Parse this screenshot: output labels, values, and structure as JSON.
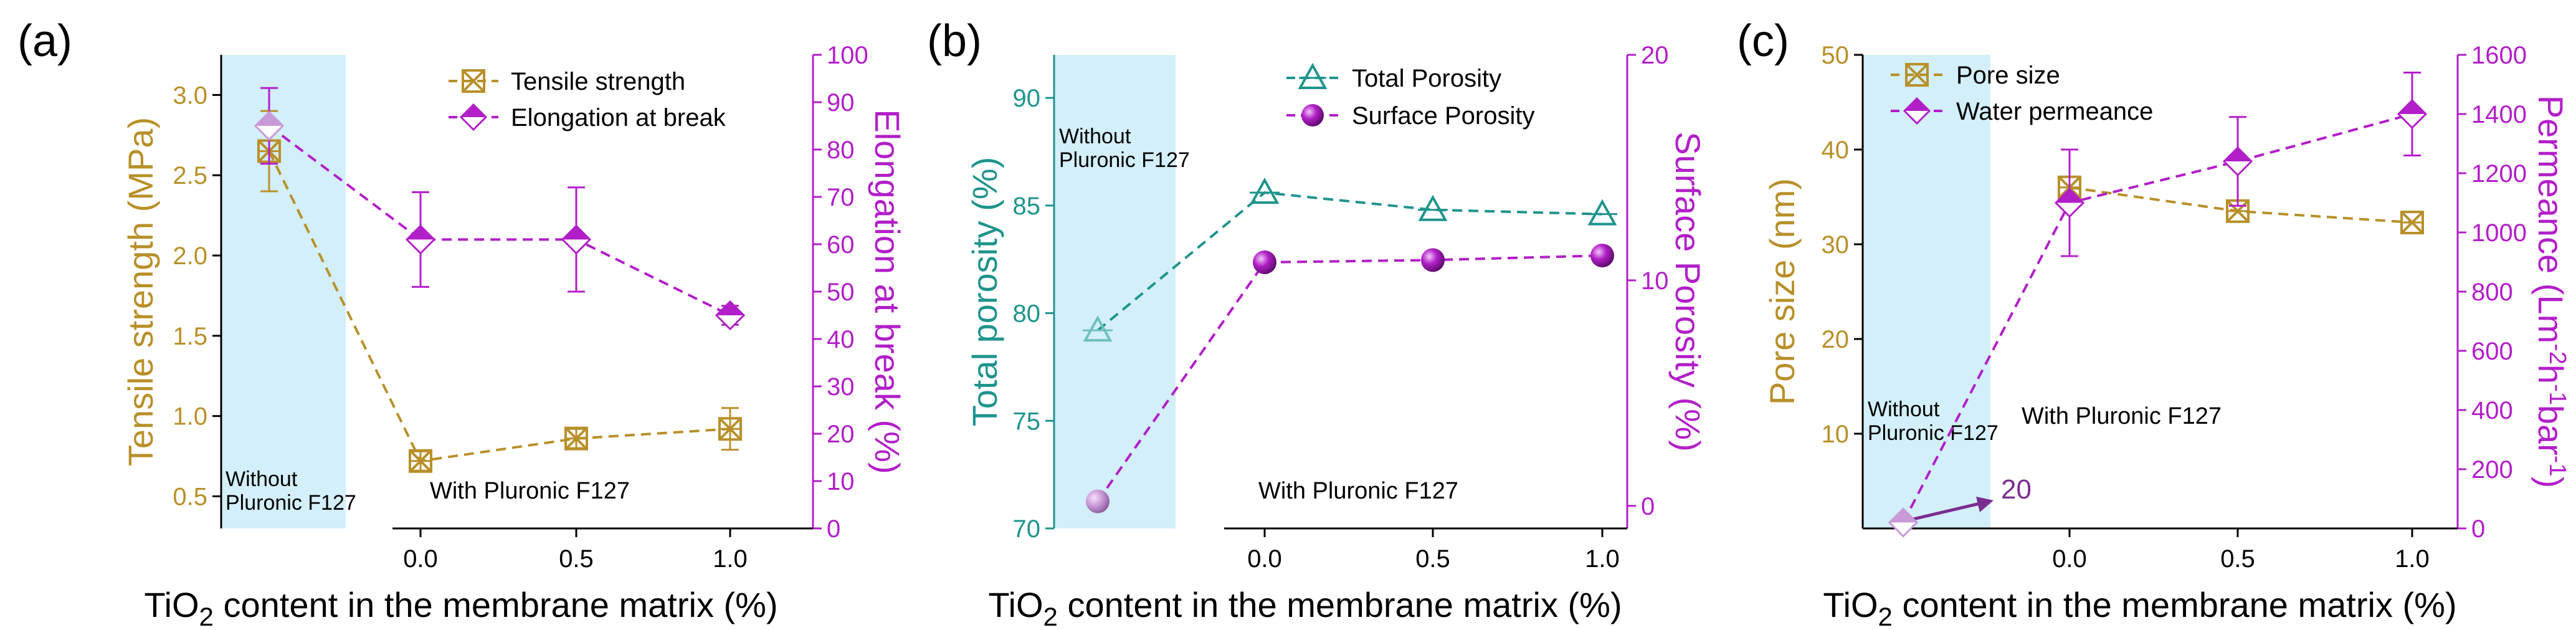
{
  "colors": {
    "gold": "#B8902A",
    "purple": "#B21FC8",
    "teal": "#1F948C",
    "cyan_shade": "#D3EFFA",
    "axis": "#000000",
    "arrow": "#7B2C90"
  },
  "chart_data": [
    {
      "type": "line",
      "panel_label": "(a)",
      "x_categories": [
        "Without Pluronic F127",
        "0.0",
        "0.5",
        "1.0"
      ],
      "xlabel_prefix": "TiO",
      "xlabel_sub": "2",
      "xlabel_suffix": " content in the membrane matrix (%)",
      "ylabel_left": "Tensile strength (MPa)",
      "ylabel_right": "Elongation at break (%)",
      "ylim_left": [
        0.3,
        3.25
      ],
      "ylim_right": [
        0,
        100
      ],
      "yticks_left": [
        0.5,
        1.0,
        1.5,
        2.0,
        2.5,
        3.0
      ],
      "yticks_left_labels": [
        "0.5",
        "1.0",
        "1.5",
        "2.0",
        "2.5",
        "3.0"
      ],
      "yticks_right": [
        0,
        10,
        20,
        30,
        40,
        50,
        60,
        70,
        80,
        90,
        100
      ],
      "yticks_right_labels": [
        "0",
        "10",
        "20",
        "30",
        "40",
        "50",
        "60",
        "70",
        "80",
        "90",
        "100"
      ],
      "shaded_label_lines": [
        "Without",
        "Pluronic F127"
      ],
      "with_label": "With Pluronic F127",
      "series": [
        {
          "name": "Tensile strength",
          "axis": "left",
          "marker": "crossed-square",
          "color": "gold",
          "values": [
            2.65,
            0.72,
            0.86,
            0.92
          ],
          "errors": [
            0.25,
            0.06,
            0.06,
            0.13
          ]
        },
        {
          "name": "Elongation at break",
          "axis": "right",
          "marker": "half-diamond",
          "color": "purple",
          "values": [
            85,
            61,
            61,
            45
          ],
          "errors": [
            8,
            10,
            11,
            2
          ]
        }
      ]
    },
    {
      "type": "line",
      "panel_label": "(b)",
      "x_categories": [
        "Without Pluronic F127",
        "0.0",
        "0.5",
        "1.0"
      ],
      "xlabel_prefix": "TiO",
      "xlabel_sub": "2",
      "xlabel_suffix": " content in the membrane matrix (%)",
      "ylabel_left": "Total porosity (%)",
      "ylabel_right": "Surface Porosity (%)",
      "ylim_left": [
        70,
        92
      ],
      "ylim_right": [
        -1,
        20
      ],
      "yticks_left": [
        70,
        75,
        80,
        85,
        90
      ],
      "yticks_left_labels": [
        "70",
        "75",
        "80",
        "85",
        "90"
      ],
      "yticks_right": [
        0,
        10,
        20
      ],
      "yticks_right_labels": [
        "0",
        "10",
        "20"
      ],
      "shaded_label_lines": [
        "Without",
        "Pluronic F127"
      ],
      "with_label": "With Pluronic F127",
      "series": [
        {
          "name": "Total Porosity",
          "axis": "left",
          "marker": "open-triangle",
          "color": "teal",
          "values": [
            79.2,
            85.6,
            84.8,
            84.6
          ]
        },
        {
          "name": "Surface Porosity",
          "axis": "right",
          "marker": "sphere",
          "color": "purple",
          "values": [
            0.2,
            10.8,
            10.9,
            11.1
          ]
        }
      ]
    },
    {
      "type": "line",
      "panel_label": "(c)",
      "x_categories": [
        "Without Pluronic F127",
        "0.0",
        "0.5",
        "1.0"
      ],
      "xlabel_prefix": "TiO",
      "xlabel_sub": "2",
      "xlabel_suffix": " content in the membrane matrix (%)",
      "ylabel_left": "Pore size (nm)",
      "ylabel_right_parts": [
        "Permeance (Lm",
        "-2",
        "h",
        "-1",
        "bar",
        "-1",
        ")"
      ],
      "ylim_left": [
        0,
        50
      ],
      "ylim_right": [
        0,
        1600
      ],
      "yticks_left": [
        10,
        20,
        30,
        40,
        50
      ],
      "yticks_left_labels": [
        "10",
        "20",
        "30",
        "40",
        "50"
      ],
      "yticks_right": [
        0,
        200,
        400,
        600,
        800,
        1000,
        1200,
        1400,
        1600
      ],
      "yticks_right_labels": [
        "0",
        "200",
        "400",
        "600",
        "800",
        "1000",
        "1200",
        "1400",
        "1600"
      ],
      "shaded_label_lines": [
        "Without",
        "Pluronic F127"
      ],
      "with_label": "With Pluronic F127",
      "annotation": "20",
      "series": [
        {
          "name": "Pore size",
          "axis": "left",
          "marker": "crossed-square",
          "color": "gold",
          "values": [
            null,
            36,
            33.5,
            32.3
          ]
        },
        {
          "name": "Water permeance",
          "axis": "right",
          "marker": "half-diamond",
          "color": "purple",
          "values": [
            20,
            1100,
            1240,
            1400
          ],
          "errors": [
            0,
            180,
            150,
            140
          ]
        }
      ]
    }
  ]
}
